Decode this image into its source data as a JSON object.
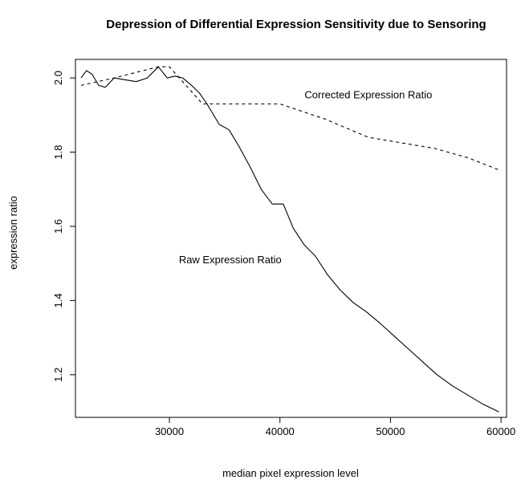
{
  "chart_data": {
    "type": "line",
    "title": "Depression of Differential Expression Sensitivity due to Sensoring",
    "xlabel": "median pixel expression level",
    "ylabel": "expression ratio",
    "xlim": [
      21500,
      60500
    ],
    "ylim": [
      1.085,
      2.05
    ],
    "x_ticks": [
      30000,
      40000,
      50000,
      60000
    ],
    "x_tick_labels": [
      "30000",
      "40000",
      "50000",
      "60000"
    ],
    "y_ticks": [
      1.2,
      1.4,
      1.6,
      1.8,
      2.0
    ],
    "y_tick_labels": [
      "1.2",
      "1.4",
      "1.6",
      "1.8",
      "2.0"
    ],
    "grid": false,
    "legend": "none",
    "series": [
      {
        "line_style": "solid",
        "color": "#000000",
        "x": [
          22000,
          22500,
          23000,
          23600,
          24200,
          25000,
          26000,
          27000,
          28000,
          29000,
          29800,
          30500,
          31200,
          32000,
          32700,
          33400,
          34500,
          35400,
          36300,
          37300,
          38300,
          39300,
          40300,
          41200,
          42200,
          43200,
          44300,
          45400,
          46600,
          47800,
          49000,
          50300,
          51600,
          52900,
          54200,
          55600,
          57000,
          58400,
          59800
        ],
        "y": [
          2.0,
          2.02,
          2.01,
          1.98,
          1.975,
          2.0,
          1.995,
          1.99,
          2.0,
          2.03,
          2.0,
          2.005,
          2.0,
          1.98,
          1.96,
          1.93,
          1.875,
          1.86,
          1.815,
          1.76,
          1.7,
          1.66,
          1.66,
          1.595,
          1.55,
          1.52,
          1.47,
          1.43,
          1.395,
          1.37,
          1.34,
          1.305,
          1.27,
          1.235,
          1.2,
          1.17,
          1.145,
          1.12,
          1.1
        ]
      },
      {
        "line_style": "dashed",
        "color": "#000000",
        "x": [
          22000,
          25000,
          29000,
          30000,
          33000,
          40000,
          44000,
          48000,
          50000,
          54000,
          57000,
          60000
        ],
        "y": [
          1.98,
          2.0,
          2.03,
          2.03,
          1.93,
          1.93,
          1.89,
          1.84,
          1.83,
          1.81,
          1.785,
          1.75
        ]
      }
    ],
    "annotations": [
      {
        "text": "Corrected Expression Ratio",
        "x": 48000,
        "y": 1.945
      },
      {
        "text": "Raw Expression Ratio",
        "x": 35500,
        "y": 1.5
      }
    ]
  }
}
